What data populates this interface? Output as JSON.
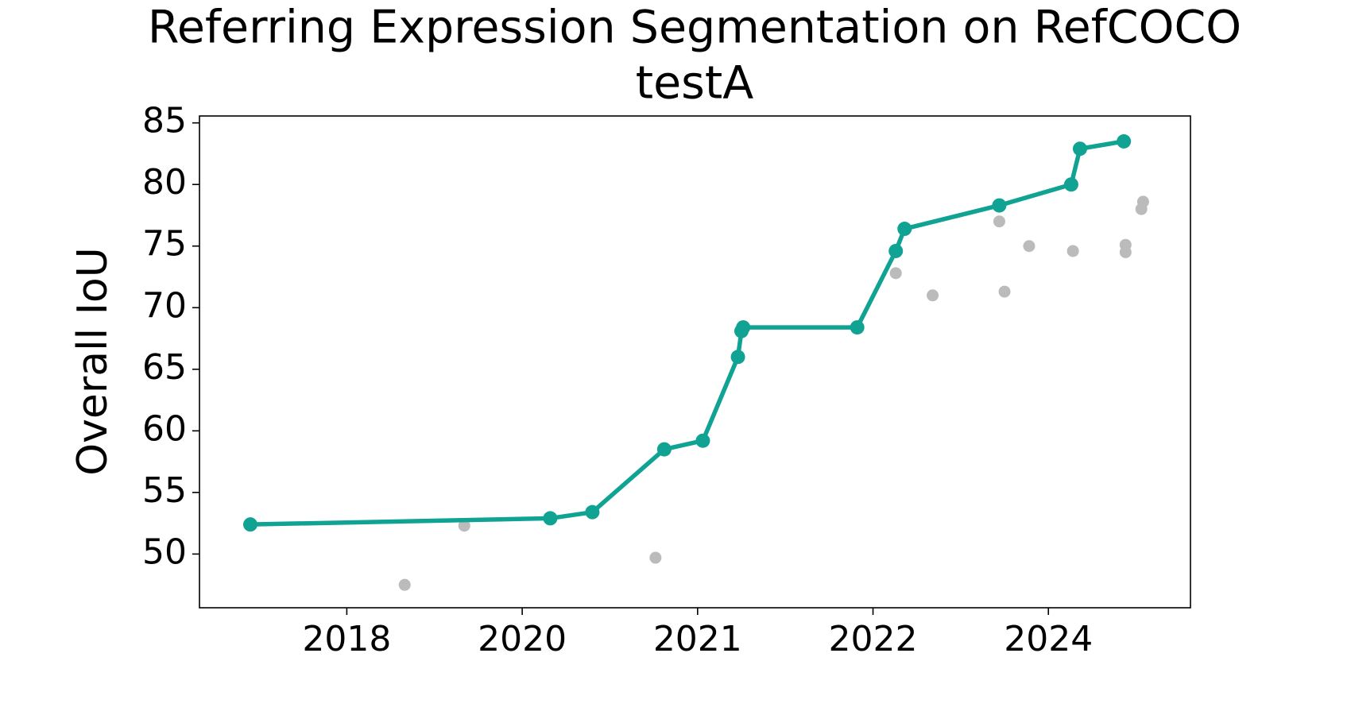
{
  "chart_data": {
    "type": "line",
    "title": [
      "Referring Expression Segmentation on RefCOCO",
      "testA"
    ],
    "y_label": "Overall IoU",
    "xlim": [
      -0.84,
      4.81
    ],
    "xticks": [
      {
        "value": 0,
        "label": "2018"
      },
      {
        "value": 1,
        "label": "2020"
      },
      {
        "value": 2,
        "label": "2021"
      },
      {
        "value": 3,
        "label": "2022"
      },
      {
        "value": 4,
        "label": "2024"
      }
    ],
    "ylim": [
      45.64,
      85.56
    ],
    "yticks": [
      50,
      55,
      60,
      65,
      70,
      75,
      80,
      85
    ],
    "series": [
      {
        "color": "#10a393",
        "style": "line",
        "x": [
          -0.55,
          1.16,
          1.4,
          1.81,
          2.03,
          2.23,
          2.25,
          2.26,
          2.91,
          3.13,
          3.18,
          3.72,
          4.13,
          4.18,
          4.43
        ],
        "values": [
          52.4,
          52.9,
          53.4,
          58.5,
          59.2,
          66.0,
          68.1,
          68.4,
          68.4,
          74.6,
          76.4,
          78.3,
          80.0,
          82.9,
          83.5
        ]
      },
      {
        "color": "#bbbbbb",
        "style": "scatter",
        "x": [
          0.33,
          0.67,
          1.76,
          3.13,
          3.34,
          3.72,
          3.75,
          3.89,
          4.14,
          4.44,
          4.44,
          4.53,
          4.54
        ],
        "values": [
          47.5,
          52.3,
          49.7,
          72.8,
          71.0,
          77.0,
          71.3,
          75.0,
          74.6,
          75.1,
          74.5,
          78.0,
          78.6
        ]
      }
    ]
  }
}
